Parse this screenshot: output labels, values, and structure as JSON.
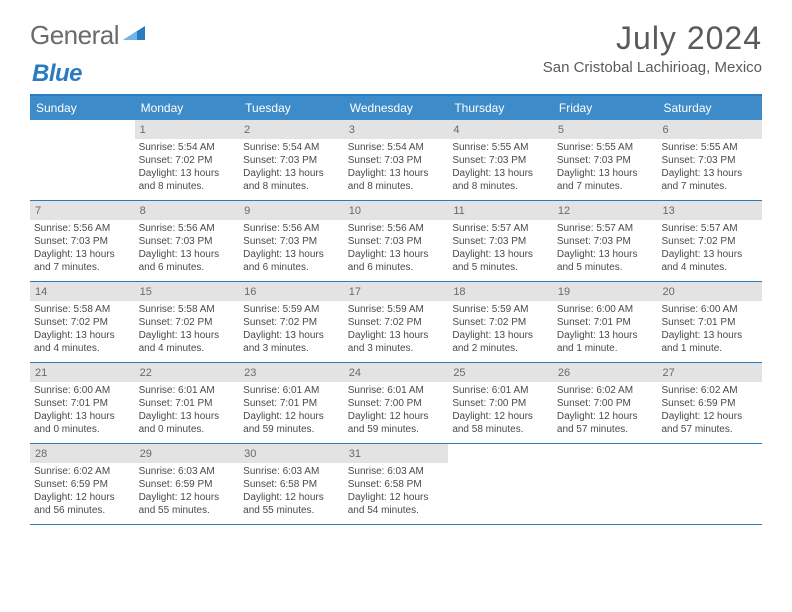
{
  "brand": {
    "part1": "General",
    "part2": "Blue"
  },
  "title": "July 2024",
  "location": "San Cristobal Lachirioag, Mexico",
  "colors": {
    "accent": "#3d8bc8",
    "rule": "#2a7bbf",
    "daynum_bg": "#e3e3e3",
    "text": "#4a4a4a",
    "title": "#5a5a5a"
  },
  "dow": [
    "Sunday",
    "Monday",
    "Tuesday",
    "Wednesday",
    "Thursday",
    "Friday",
    "Saturday"
  ],
  "weeks": [
    [
      {
        "n": "",
        "sr": "",
        "ss": "",
        "dl": ""
      },
      {
        "n": "1",
        "sr": "Sunrise: 5:54 AM",
        "ss": "Sunset: 7:02 PM",
        "dl": "Daylight: 13 hours and 8 minutes."
      },
      {
        "n": "2",
        "sr": "Sunrise: 5:54 AM",
        "ss": "Sunset: 7:03 PM",
        "dl": "Daylight: 13 hours and 8 minutes."
      },
      {
        "n": "3",
        "sr": "Sunrise: 5:54 AM",
        "ss": "Sunset: 7:03 PM",
        "dl": "Daylight: 13 hours and 8 minutes."
      },
      {
        "n": "4",
        "sr": "Sunrise: 5:55 AM",
        "ss": "Sunset: 7:03 PM",
        "dl": "Daylight: 13 hours and 8 minutes."
      },
      {
        "n": "5",
        "sr": "Sunrise: 5:55 AM",
        "ss": "Sunset: 7:03 PM",
        "dl": "Daylight: 13 hours and 7 minutes."
      },
      {
        "n": "6",
        "sr": "Sunrise: 5:55 AM",
        "ss": "Sunset: 7:03 PM",
        "dl": "Daylight: 13 hours and 7 minutes."
      }
    ],
    [
      {
        "n": "7",
        "sr": "Sunrise: 5:56 AM",
        "ss": "Sunset: 7:03 PM",
        "dl": "Daylight: 13 hours and 7 minutes."
      },
      {
        "n": "8",
        "sr": "Sunrise: 5:56 AM",
        "ss": "Sunset: 7:03 PM",
        "dl": "Daylight: 13 hours and 6 minutes."
      },
      {
        "n": "9",
        "sr": "Sunrise: 5:56 AM",
        "ss": "Sunset: 7:03 PM",
        "dl": "Daylight: 13 hours and 6 minutes."
      },
      {
        "n": "10",
        "sr": "Sunrise: 5:56 AM",
        "ss": "Sunset: 7:03 PM",
        "dl": "Daylight: 13 hours and 6 minutes."
      },
      {
        "n": "11",
        "sr": "Sunrise: 5:57 AM",
        "ss": "Sunset: 7:03 PM",
        "dl": "Daylight: 13 hours and 5 minutes."
      },
      {
        "n": "12",
        "sr": "Sunrise: 5:57 AM",
        "ss": "Sunset: 7:03 PM",
        "dl": "Daylight: 13 hours and 5 minutes."
      },
      {
        "n": "13",
        "sr": "Sunrise: 5:57 AM",
        "ss": "Sunset: 7:02 PM",
        "dl": "Daylight: 13 hours and 4 minutes."
      }
    ],
    [
      {
        "n": "14",
        "sr": "Sunrise: 5:58 AM",
        "ss": "Sunset: 7:02 PM",
        "dl": "Daylight: 13 hours and 4 minutes."
      },
      {
        "n": "15",
        "sr": "Sunrise: 5:58 AM",
        "ss": "Sunset: 7:02 PM",
        "dl": "Daylight: 13 hours and 4 minutes."
      },
      {
        "n": "16",
        "sr": "Sunrise: 5:59 AM",
        "ss": "Sunset: 7:02 PM",
        "dl": "Daylight: 13 hours and 3 minutes."
      },
      {
        "n": "17",
        "sr": "Sunrise: 5:59 AM",
        "ss": "Sunset: 7:02 PM",
        "dl": "Daylight: 13 hours and 3 minutes."
      },
      {
        "n": "18",
        "sr": "Sunrise: 5:59 AM",
        "ss": "Sunset: 7:02 PM",
        "dl": "Daylight: 13 hours and 2 minutes."
      },
      {
        "n": "19",
        "sr": "Sunrise: 6:00 AM",
        "ss": "Sunset: 7:01 PM",
        "dl": "Daylight: 13 hours and 1 minute."
      },
      {
        "n": "20",
        "sr": "Sunrise: 6:00 AM",
        "ss": "Sunset: 7:01 PM",
        "dl": "Daylight: 13 hours and 1 minute."
      }
    ],
    [
      {
        "n": "21",
        "sr": "Sunrise: 6:00 AM",
        "ss": "Sunset: 7:01 PM",
        "dl": "Daylight: 13 hours and 0 minutes."
      },
      {
        "n": "22",
        "sr": "Sunrise: 6:01 AM",
        "ss": "Sunset: 7:01 PM",
        "dl": "Daylight: 13 hours and 0 minutes."
      },
      {
        "n": "23",
        "sr": "Sunrise: 6:01 AM",
        "ss": "Sunset: 7:01 PM",
        "dl": "Daylight: 12 hours and 59 minutes."
      },
      {
        "n": "24",
        "sr": "Sunrise: 6:01 AM",
        "ss": "Sunset: 7:00 PM",
        "dl": "Daylight: 12 hours and 59 minutes."
      },
      {
        "n": "25",
        "sr": "Sunrise: 6:01 AM",
        "ss": "Sunset: 7:00 PM",
        "dl": "Daylight: 12 hours and 58 minutes."
      },
      {
        "n": "26",
        "sr": "Sunrise: 6:02 AM",
        "ss": "Sunset: 7:00 PM",
        "dl": "Daylight: 12 hours and 57 minutes."
      },
      {
        "n": "27",
        "sr": "Sunrise: 6:02 AM",
        "ss": "Sunset: 6:59 PM",
        "dl": "Daylight: 12 hours and 57 minutes."
      }
    ],
    [
      {
        "n": "28",
        "sr": "Sunrise: 6:02 AM",
        "ss": "Sunset: 6:59 PM",
        "dl": "Daylight: 12 hours and 56 minutes."
      },
      {
        "n": "29",
        "sr": "Sunrise: 6:03 AM",
        "ss": "Sunset: 6:59 PM",
        "dl": "Daylight: 12 hours and 55 minutes."
      },
      {
        "n": "30",
        "sr": "Sunrise: 6:03 AM",
        "ss": "Sunset: 6:58 PM",
        "dl": "Daylight: 12 hours and 55 minutes."
      },
      {
        "n": "31",
        "sr": "Sunrise: 6:03 AM",
        "ss": "Sunset: 6:58 PM",
        "dl": "Daylight: 12 hours and 54 minutes."
      },
      {
        "n": "",
        "sr": "",
        "ss": "",
        "dl": ""
      },
      {
        "n": "",
        "sr": "",
        "ss": "",
        "dl": ""
      },
      {
        "n": "",
        "sr": "",
        "ss": "",
        "dl": ""
      }
    ]
  ]
}
